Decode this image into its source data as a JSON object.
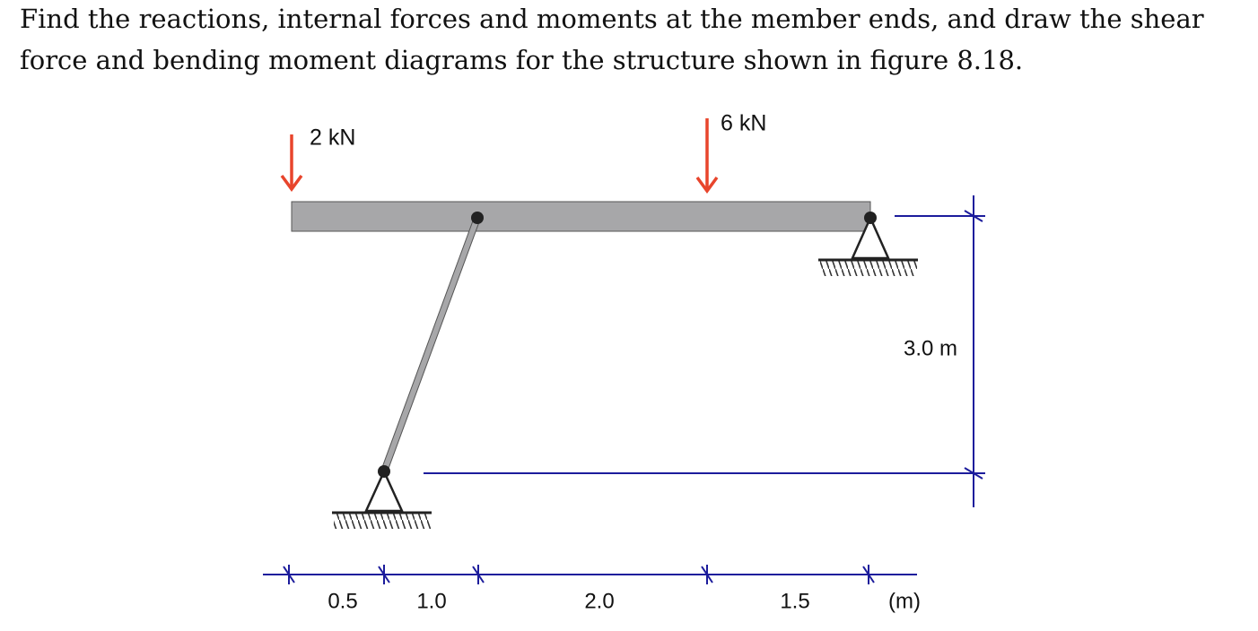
{
  "problem": {
    "lines": [
      "Find the reactions, internal forces and moments at the member ends, and draw the shear",
      "force and bending moment diagrams for the structure shown in figure 8.18."
    ]
  },
  "loads": [
    {
      "label": "2 kN"
    },
    {
      "label": "6 kN"
    }
  ],
  "dimensions": {
    "height": "3.0 m",
    "spans": [
      "0.5",
      "1.0",
      "2.0",
      "1.5"
    ],
    "unit": "(m)"
  }
}
